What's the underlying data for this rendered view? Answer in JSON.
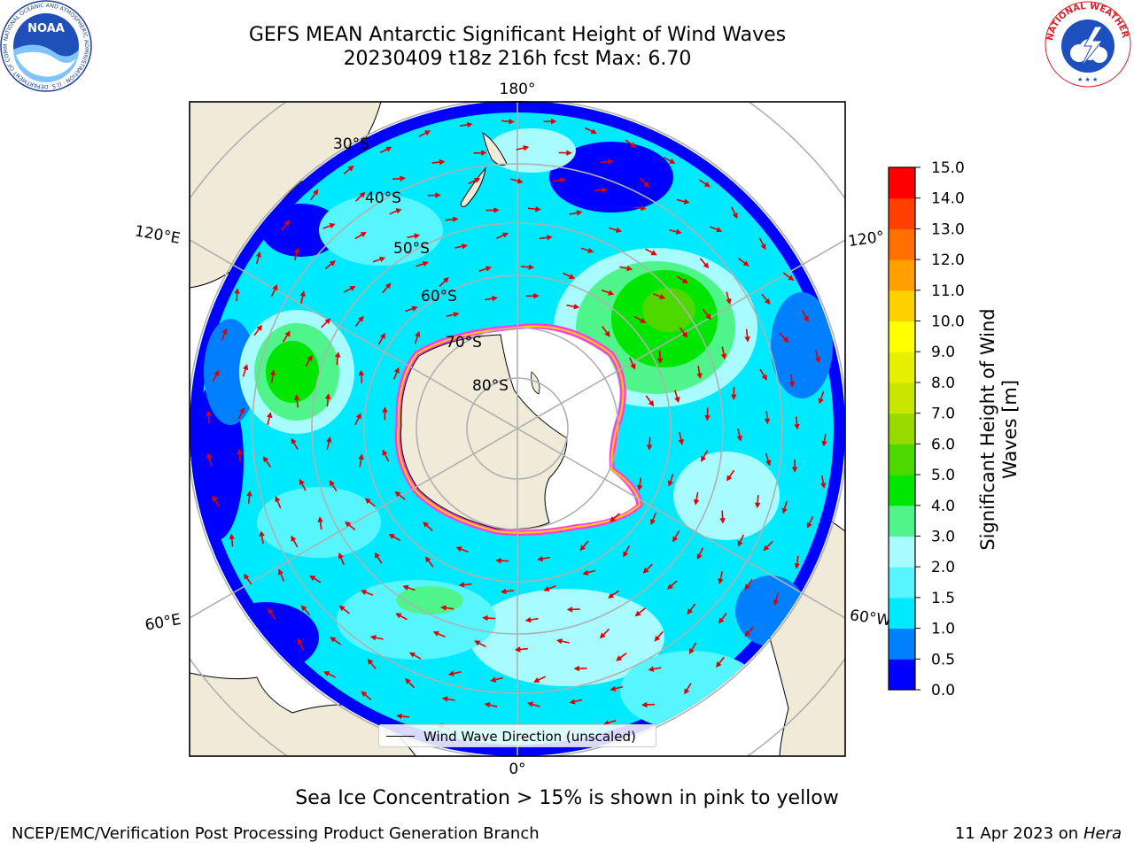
{
  "header": {
    "title_line1": "GEFS MEAN Antarctic Significant Height of Wind Waves",
    "title_line2": "20230409 t18z 216h fcst   Max: 6.70"
  },
  "map": {
    "longitude_labels": {
      "top": "180°",
      "bottom": "0°",
      "upper_left": "120°E",
      "lower_left": "60°E",
      "upper_right": "120°",
      "lower_right": "60°W"
    },
    "latitude_labels": [
      "30°S",
      "40°S",
      "50°S",
      "60°S",
      "70°S",
      "80°S"
    ],
    "legend": "Wind Wave Direction (unscaled)",
    "colors": {
      "land": "#efebd8",
      "ice_edge": "#ff40e0",
      "arrow": "#e00000",
      "graticule": "#b0b0b0"
    }
  },
  "colorbar": {
    "label_line1": "Significant Height of Wind",
    "label_line2": "Waves [m]",
    "ticks": [
      "0.0",
      "0.5",
      "1.0",
      "1.5",
      "2.0",
      "3.0",
      "4.0",
      "5.0",
      "6.0",
      "7.0",
      "8.0",
      "9.0",
      "10.0",
      "11.0",
      "12.0",
      "13.0",
      "14.0",
      "15.0"
    ],
    "colors": [
      "#0000ff",
      "#0080ff",
      "#00eaff",
      "#57f6ff",
      "#a8fbff",
      "#4ff58a",
      "#00e600",
      "#4dd900",
      "#99d900",
      "#c8e600",
      "#e6f000",
      "#ffff00",
      "#ffd000",
      "#ffa000",
      "#ff7000",
      "#ff4000",
      "#ff0000"
    ]
  },
  "footnote": "Sea Ice Concentration > 15% is shown in pink to yellow",
  "footer": {
    "left": "NCEP/EMC/Verification Post Processing Product Generation Branch",
    "right_prefix": "11 Apr 2023 on ",
    "right_italic": "Hera"
  },
  "logos": {
    "noaa": "NOAA",
    "noaa_ring": "NATIONAL OCEANIC AND ATMOSPHERIC ADMINISTRATION · U.S. DEPARTMENT OF COMMERCE",
    "nws_ring": "NATIONAL WEATHER SERVICE"
  }
}
